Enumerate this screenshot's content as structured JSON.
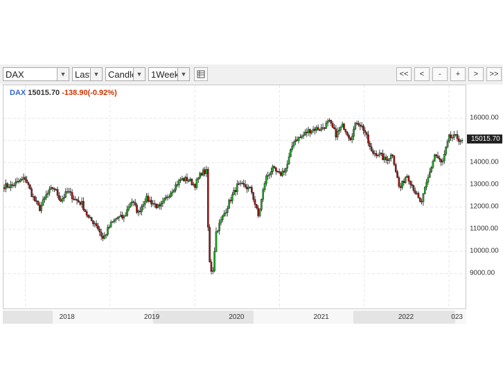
{
  "toolbar": {
    "symbol": "DAX",
    "price_field": "Last",
    "chart_type": "Candle",
    "interval": "1Week",
    "table_icon": "table-icon",
    "nav": {
      "first": "<<",
      "prev": "<",
      "zoom_out": "-",
      "zoom_in": "+",
      "next": ">",
      "last": ">>"
    }
  },
  "quote": {
    "symbol": "DAX",
    "last": "15015.70",
    "change": "-138.90(-0.92%)",
    "symbol_color": "#3366cc",
    "change_color": "#cc3300"
  },
  "last_price_tag": "15015.70",
  "colors": {
    "up": "#22aa22",
    "down": "#aa1111",
    "grid": "#e6e6e6"
  },
  "chart_data": {
    "type": "candlestick",
    "title": "",
    "series_name": "DAX",
    "interval": "1 week",
    "y_ticks": [
      "9000.00",
      "10000.00",
      "11000.00",
      "12000.00",
      "13000.00",
      "14000.00",
      "15000.00",
      "16000.00"
    ],
    "ylim": [
      7800,
      16800
    ],
    "y_axis_position": "right",
    "x_ticks": [
      "2018",
      "2019",
      "2020",
      "2021",
      "2022",
      "023"
    ],
    "grid": true,
    "close_path": [
      [
        "2017-11",
        12950
      ],
      [
        "2018-01",
        13300
      ],
      [
        "2018-02",
        12500
      ],
      [
        "2018-03",
        11900
      ],
      [
        "2018-04",
        12550
      ],
      [
        "2018-05",
        12900
      ],
      [
        "2018-06",
        12300
      ],
      [
        "2018-07",
        12700
      ],
      [
        "2018-08",
        12350
      ],
      [
        "2018-09",
        12150
      ],
      [
        "2018-10",
        11450
      ],
      [
        "2018-11",
        11250
      ],
      [
        "2018-12",
        10560
      ],
      [
        "2019-01",
        11180
      ],
      [
        "2019-02",
        11520
      ],
      [
        "2019-03",
        11530
      ],
      [
        "2019-04",
        12330
      ],
      [
        "2019-05",
        11730
      ],
      [
        "2019-06",
        12400
      ],
      [
        "2019-07",
        12190
      ],
      [
        "2019-08",
        11940
      ],
      [
        "2019-09",
        12430
      ],
      [
        "2019-10",
        12870
      ],
      [
        "2019-11",
        13240
      ],
      [
        "2019-12",
        13250
      ],
      [
        "2020-01",
        12980
      ],
      [
        "2020-02",
        13580
      ],
      [
        "2020-02-21",
        13580
      ],
      [
        "2020-03",
        9630
      ],
      [
        "2020-03-16",
        8930
      ],
      [
        "2020-04",
        10860
      ],
      [
        "2020-05",
        11590
      ],
      [
        "2020-06",
        12310
      ],
      [
        "2020-07",
        12950
      ],
      [
        "2020-08",
        12950
      ],
      [
        "2020-09",
        12760
      ],
      [
        "2020-10",
        11560
      ],
      [
        "2020-11",
        13290
      ],
      [
        "2020-12",
        13720
      ],
      [
        "2021-01",
        13430
      ],
      [
        "2021-02",
        13790
      ],
      [
        "2021-03",
        15010
      ],
      [
        "2021-04",
        15140
      ],
      [
        "2021-05",
        15420
      ],
      [
        "2021-06",
        15530
      ],
      [
        "2021-07",
        15540
      ],
      [
        "2021-08",
        15840
      ],
      [
        "2021-09",
        15260
      ],
      [
        "2021-10",
        15690
      ],
      [
        "2021-11",
        15100
      ],
      [
        "2021-12",
        15880
      ],
      [
        "2022-01",
        15470
      ],
      [
        "2022-02",
        14460
      ],
      [
        "2022-03",
        14410
      ],
      [
        "2022-04",
        14100
      ],
      [
        "2022-05",
        14390
      ],
      [
        "2022-06",
        12780
      ],
      [
        "2022-07",
        13480
      ],
      [
        "2022-08",
        12830
      ],
      [
        "2022-09",
        12110
      ],
      [
        "2022-10",
        13250
      ],
      [
        "2022-11",
        14400
      ],
      [
        "2022-12",
        13920
      ],
      [
        "2023-01",
        15130
      ],
      [
        "2023-02",
        15150
      ],
      [
        "2023-02-20",
        15015.7
      ]
    ]
  }
}
